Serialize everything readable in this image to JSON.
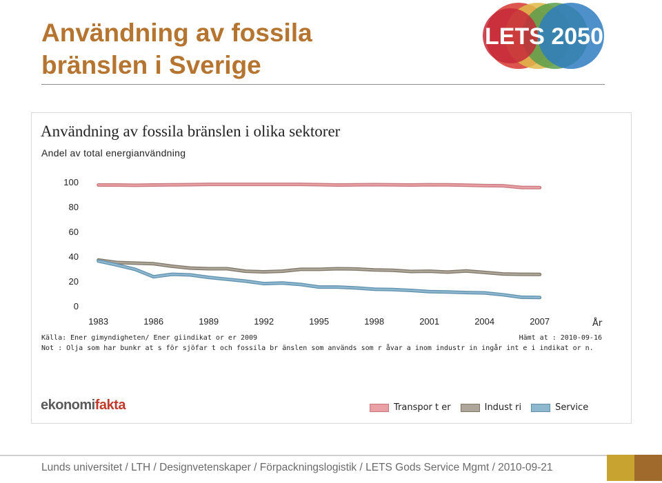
{
  "slide": {
    "title_lines": [
      "Användning av fossila",
      "bränslen i Sverige"
    ],
    "logo_text": "LETS 2050"
  },
  "chart_data": {
    "type": "line",
    "title": "Användning av fossila bränslen i olika sektorer",
    "subtitle": "Andel av total energianvändning",
    "xlabel": "År",
    "ylabel": "",
    "xlim": [
      1982,
      2009
    ],
    "ylim": [
      0,
      100
    ],
    "yticks": [
      0,
      20,
      40,
      60,
      80,
      100
    ],
    "xticks": [
      1983,
      1986,
      1989,
      1992,
      1995,
      1998,
      2001,
      2004,
      2007
    ],
    "grid": false,
    "legend_position": "bottom-right",
    "x": [
      1983,
      1984,
      1985,
      1986,
      1987,
      1988,
      1989,
      1990,
      1991,
      1992,
      1993,
      1994,
      1995,
      1996,
      1997,
      1998,
      1999,
      2000,
      2001,
      2002,
      2003,
      2004,
      2005,
      2006,
      2007
    ],
    "series": [
      {
        "name": "Transporter",
        "color": "#e8a0a4",
        "edge": "#c7787d",
        "values": [
          97.5,
          97.5,
          97.3,
          97.5,
          97.6,
          97.8,
          98.0,
          98.0,
          98.0,
          98.0,
          98.0,
          98.0,
          97.8,
          97.5,
          97.6,
          97.8,
          97.6,
          97.5,
          97.7,
          97.6,
          97.4,
          97.0,
          96.9,
          95.5,
          95.4
        ]
      },
      {
        "name": "Industri",
        "color": "#aea698",
        "edge": "#7e7668",
        "values": [
          37.0,
          35.0,
          34.5,
          34.0,
          32.0,
          30.5,
          30.0,
          30.0,
          28.0,
          27.5,
          28.0,
          29.5,
          29.5,
          30.0,
          29.8,
          29.0,
          28.7,
          27.8,
          28.0,
          27.3,
          28.2,
          27.0,
          25.8,
          25.5,
          25.4
        ]
      },
      {
        "name": "Service",
        "color": "#8db8d0",
        "edge": "#5f8fab",
        "values": [
          36.2,
          33.0,
          29.5,
          23.5,
          25.5,
          25.0,
          23.0,
          21.5,
          20.0,
          18.0,
          18.5,
          17.3,
          15.2,
          15.2,
          14.5,
          13.5,
          13.2,
          12.5,
          11.5,
          11.2,
          10.8,
          10.5,
          9.0,
          7.0,
          6.8
        ]
      }
    ]
  },
  "notes": {
    "source": "Källa: Ener gimyndigheten/ Ener giindikat or er 2009",
    "note": "Not : Olja som har bunkr at s för sjöfar t och fossila br änslen som används som r åvar a inom industr in ingår int e i indikat or n.",
    "retrieved": "Hämt at : 2010-09-16"
  },
  "brand": {
    "part1": "ekonomi",
    "part2": "fakta"
  },
  "legend": {
    "items": [
      "Transpor t er",
      "Indust ri",
      "Service"
    ]
  },
  "footer": {
    "text": "Lunds universitet / LTH / Designvetenskaper / Förpackningslogistik / LETS Gods Service Mgmt / 2010-09-21"
  }
}
